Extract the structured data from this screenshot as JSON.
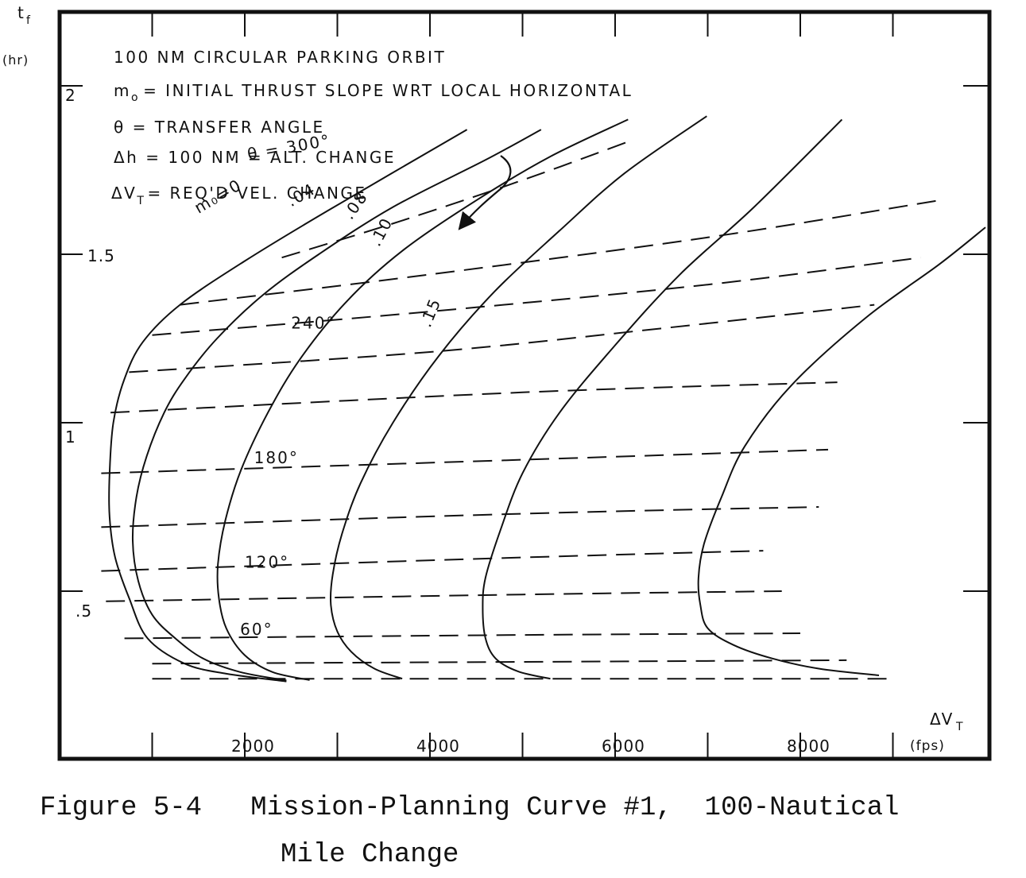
{
  "caption": {
    "figure_label": "Figure 5-4",
    "title_line1": "Mission-Planning Curve #1,  100-Nautical",
    "title_line2": "Mile Change"
  },
  "chart_data": {
    "type": "line",
    "y_axis": {
      "label_line1": "t",
      "label_sub": "f",
      "label_line2": "(hr)",
      "tick_labels": [
        ".5",
        "1",
        "1.5",
        "2"
      ],
      "range": [
        0.16,
        2.18
      ]
    },
    "x_axis": {
      "label": "ΔV",
      "label_sub": "T",
      "unit": "(fps)",
      "tick_labels": [
        "2000",
        "4000",
        "6000",
        "8000"
      ],
      "range": [
        0,
        10000
      ]
    },
    "notes": [
      {
        "text": "100 NM  CIRCULAR PARKING ORBIT"
      },
      {
        "pre": "m",
        "sub": "o",
        "post": "= INITIAL THRUST SLOPE  WRT  LOCAL HORIZONTAL"
      },
      {
        "text": "θ = TRANSFER  ANGLE"
      },
      {
        "text": "Δh = 100 NM = ALT. CHANGE"
      },
      {
        "pre": "ΔV",
        "sub": "T",
        "post": "= REQ'D VEL. CHANGE"
      }
    ],
    "thrust_slope_series": [
      {
        "name": "m₀=0",
        "dash": "solid",
        "points": [
          [
            2450,
            0.232
          ],
          [
            1800,
            0.255
          ],
          [
            1350,
            0.285
          ],
          [
            950,
            0.36
          ],
          [
            750,
            0.48
          ],
          [
            600,
            0.6
          ],
          [
            540,
            0.72
          ],
          [
            540,
            0.85
          ],
          [
            580,
            1.0
          ],
          [
            700,
            1.13
          ],
          [
            900,
            1.24
          ],
          [
            1300,
            1.35
          ],
          [
            2000,
            1.48
          ],
          [
            2900,
            1.63
          ],
          [
            4400,
            1.87
          ]
        ]
      },
      {
        "name": ".04",
        "dash": "solid",
        "points": [
          [
            2450,
            0.235
          ],
          [
            1950,
            0.26
          ],
          [
            1550,
            0.3
          ],
          [
            1250,
            0.36
          ],
          [
            1000,
            0.43
          ],
          [
            850,
            0.53
          ],
          [
            790,
            0.65
          ],
          [
            830,
            0.78
          ],
          [
            940,
            0.9
          ],
          [
            1130,
            1.03
          ],
          [
            1350,
            1.13
          ],
          [
            1700,
            1.25
          ],
          [
            2200,
            1.38
          ],
          [
            2800,
            1.5
          ],
          [
            3600,
            1.64
          ],
          [
            4600,
            1.78
          ],
          [
            5200,
            1.87
          ]
        ]
      },
      {
        "name": ".08",
        "dash": "solid",
        "points": [
          [
            2700,
            0.236
          ],
          [
            2300,
            0.26
          ],
          [
            2000,
            0.31
          ],
          [
            1800,
            0.39
          ],
          [
            1720,
            0.48
          ],
          [
            1710,
            0.58
          ],
          [
            1790,
            0.71
          ],
          [
            1960,
            0.86
          ],
          [
            2250,
            1.03
          ],
          [
            2600,
            1.19
          ],
          [
            3100,
            1.36
          ],
          [
            3700,
            1.51
          ],
          [
            4500,
            1.66
          ],
          [
            5300,
            1.79
          ],
          [
            6140,
            1.9
          ]
        ]
      },
      {
        "name": ".10",
        "dash": "solid",
        "points": [
          [
            3700,
            0.24
          ],
          [
            3400,
            0.27
          ],
          [
            3150,
            0.32
          ],
          [
            3000,
            0.38
          ],
          [
            2930,
            0.46
          ],
          [
            2950,
            0.55
          ],
          [
            3050,
            0.67
          ],
          [
            3250,
            0.82
          ],
          [
            3600,
            1.0
          ],
          [
            4100,
            1.2
          ],
          [
            4700,
            1.39
          ],
          [
            5400,
            1.57
          ],
          [
            6100,
            1.74
          ],
          [
            6990,
            1.91
          ]
        ]
      },
      {
        "name": ".15",
        "dash": "solid",
        "points": [
          [
            5300,
            0.24
          ],
          [
            4950,
            0.262
          ],
          [
            4710,
            0.3
          ],
          [
            4600,
            0.36
          ],
          [
            4570,
            0.45
          ],
          [
            4600,
            0.54
          ],
          [
            4760,
            0.68
          ],
          [
            5000,
            0.85
          ],
          [
            5400,
            1.03
          ],
          [
            6000,
            1.23
          ],
          [
            6700,
            1.44
          ],
          [
            7500,
            1.64
          ],
          [
            8450,
            1.9
          ]
        ]
      },
      {
        "name": ".15",
        "dash": "solid",
        "points": [
          [
            8850,
            0.25
          ],
          [
            8200,
            0.27
          ],
          [
            7700,
            0.3
          ],
          [
            7280,
            0.34
          ],
          [
            7000,
            0.39
          ],
          [
            6920,
            0.46
          ],
          [
            6900,
            0.54
          ],
          [
            6960,
            0.64
          ],
          [
            7150,
            0.78
          ],
          [
            7400,
            0.93
          ],
          [
            7900,
            1.11
          ],
          [
            8700,
            1.31
          ],
          [
            9500,
            1.47
          ],
          [
            10000,
            1.58
          ]
        ]
      }
    ],
    "transfer_angle_series": [
      {
        "name": "θ",
        "dash": "dashed",
        "points": [
          [
            1000,
            0.24
          ],
          [
            5000,
            0.24
          ],
          [
            9000,
            0.24
          ]
        ]
      },
      {
        "name": "θ",
        "dash": "dashed",
        "points": [
          [
            1000,
            0.285
          ],
          [
            5000,
            0.29
          ],
          [
            8500,
            0.295
          ]
        ]
      },
      {
        "name": "60°",
        "dash": "dashed",
        "points": [
          [
            700,
            0.36
          ],
          [
            5000,
            0.37
          ],
          [
            8000,
            0.375
          ]
        ]
      },
      {
        "name": "θ",
        "dash": "dashed",
        "points": [
          [
            500,
            0.47
          ],
          [
            5000,
            0.49
          ],
          [
            7800,
            0.5
          ]
        ]
      },
      {
        "name": "120°",
        "dash": "dashed",
        "points": [
          [
            450,
            0.56
          ],
          [
            5000,
            0.6
          ],
          [
            7600,
            0.62
          ]
        ]
      },
      {
        "name": "θ",
        "dash": "dashed",
        "points": [
          [
            450,
            0.69
          ],
          [
            5000,
            0.73
          ],
          [
            8200,
            0.75
          ]
        ]
      },
      {
        "name": "180°",
        "dash": "dashed",
        "points": [
          [
            450,
            0.85
          ],
          [
            5000,
            0.89
          ],
          [
            8300,
            0.92
          ]
        ]
      },
      {
        "name": "θ",
        "dash": "dashed",
        "points": [
          [
            550,
            1.03
          ],
          [
            5000,
            1.09
          ],
          [
            8400,
            1.12
          ]
        ]
      },
      {
        "name": "θ",
        "dash": "dashed",
        "points": [
          [
            750,
            1.15
          ],
          [
            4000,
            1.21
          ],
          [
            6500,
            1.28
          ],
          [
            8800,
            1.35
          ]
        ]
      },
      {
        "name": "240°",
        "dash": "dashed",
        "points": [
          [
            1000,
            1.26
          ],
          [
            4000,
            1.33
          ],
          [
            7000,
            1.41
          ],
          [
            9300,
            1.49
          ]
        ]
      },
      {
        "name": "θ",
        "dash": "dashed",
        "points": [
          [
            1300,
            1.35
          ],
          [
            4000,
            1.44
          ],
          [
            7000,
            1.55
          ],
          [
            9500,
            1.66
          ]
        ]
      },
      {
        "name": "300°",
        "dash": "dashed",
        "points": [
          [
            2400,
            1.49
          ],
          [
            3700,
            1.6
          ],
          [
            5000,
            1.72
          ],
          [
            6200,
            1.84
          ]
        ]
      }
    ],
    "curve_labels": [
      {
        "text": "m₀=0",
        "x": 1500,
        "y": 1.62
      },
      {
        "text": ".04",
        "x": 2500,
        "y": 1.64
      },
      {
        "text": ".08",
        "x": 3150,
        "y": 1.6
      },
      {
        "text": ".10",
        "x": 3450,
        "y": 1.52
      },
      {
        "text": ".15",
        "x": 4000,
        "y": 1.28
      },
      {
        "text": "240°",
        "x": 2500,
        "y": 1.28
      },
      {
        "text": "180°",
        "x": 2100,
        "y": 0.88
      },
      {
        "text": "120°",
        "x": 2000,
        "y": 0.57
      },
      {
        "text": "60°",
        "x": 1950,
        "y": 0.37
      },
      {
        "text": "θ = 300°",
        "x": 2040,
        "y": 1.78
      }
    ]
  }
}
